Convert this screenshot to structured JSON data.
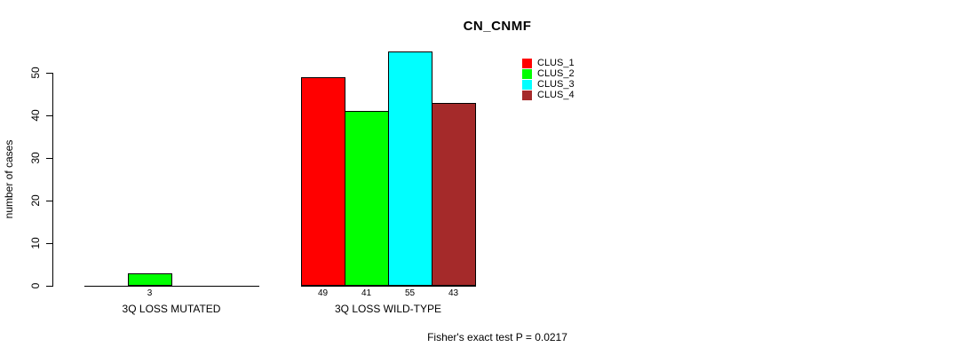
{
  "chart_data": {
    "type": "bar",
    "title": "CN_CNMF",
    "xlabel": "",
    "ylabel": "number of cases",
    "ylim": [
      0,
      55
    ],
    "yticks": [
      0,
      10,
      20,
      30,
      40,
      50
    ],
    "grid": false,
    "legend": {
      "position": "top-right",
      "entries": [
        {
          "label": "CLUS_1",
          "color": "#FF0000"
        },
        {
          "label": "CLUS_2",
          "color": "#00FF00"
        },
        {
          "label": "CLUS_3",
          "color": "#00FFFF"
        },
        {
          "label": "CLUS_4",
          "color": "#A52A2A"
        }
      ]
    },
    "categories": [
      "3Q LOSS MUTATED",
      "3Q LOSS WILD-TYPE"
    ],
    "groups": [
      {
        "label": "3Q LOSS MUTATED",
        "series_values": [
          0,
          3,
          0,
          0
        ],
        "bar_labels": [
          "",
          "3",
          "",
          ""
        ]
      },
      {
        "label": "3Q LOSS WILD-TYPE",
        "series_values": [
          49,
          41,
          55,
          43
        ],
        "bar_labels": [
          "49",
          "41",
          "55",
          "43"
        ]
      }
    ],
    "annotation": "Fisher's exact test P = 0.0217"
  }
}
